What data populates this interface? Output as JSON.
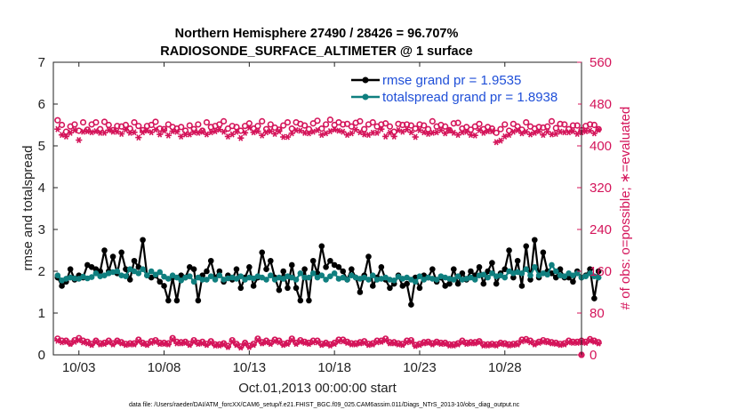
{
  "chart_data": {
    "type": "line",
    "title": "Northern Hemisphere 27490 / 28426 = 96.707%",
    "subtitle": "RADIOSONDE_SURFACE_ALTIMETER @ 1 surface",
    "xlabel": "Oct.01,2013 00:00:00 start",
    "ylabel_left": "rmse and totalspread",
    "ylabel_right": "# of obs: o=possible; ∗=evaluated",
    "footer": "data file: /Users/raeder/DAI/ATM_forcXX/CAM6_setup/f.e21.FHIST_BGC.f09_025.CAM6assim.011/Diags_NTrS_2013-10/obs_diag_output.nc",
    "xlim": [
      1.5,
      32.5
    ],
    "ylim_left": [
      0,
      7
    ],
    "ylim_right": [
      0,
      560
    ],
    "x_ticks": [
      3,
      8,
      13,
      18,
      23,
      28
    ],
    "x_tick_labels": [
      "10/03",
      "10/08",
      "10/13",
      "10/18",
      "10/23",
      "10/28"
    ],
    "y_ticks_left": [
      0,
      1,
      2,
      3,
      4,
      5,
      6,
      7
    ],
    "y_ticks_right": [
      0,
      80,
      160,
      240,
      320,
      400,
      480,
      560
    ],
    "x_step_days": 0.25,
    "grid": false,
    "legend_position": "top-right",
    "colors": {
      "rmse": "#000000",
      "totalspread": "#0f7f7f",
      "obs": "#d4145a"
    },
    "series": [
      {
        "name": "rmse grand pr = 1.9535",
        "axis": "left",
        "marker": "filled-circle",
        "values": [
          1.85,
          1.65,
          1.75,
          2.05,
          1.8,
          1.9,
          1.85,
          2.15,
          2.1,
          2.05,
          2.0,
          2.5,
          2.0,
          2.35,
          1.95,
          2.45,
          2.05,
          1.8,
          2.25,
          2.1,
          2.75,
          1.9,
          1.85,
          1.9,
          1.75,
          1.65,
          1.3,
          1.85,
          1.3,
          1.9,
          1.85,
          2.1,
          2.05,
          1.3,
          1.9,
          2.0,
          2.25,
          1.85,
          2.0,
          1.75,
          1.9,
          1.8,
          2.05,
          1.6,
          1.85,
          2.1,
          1.65,
          1.85,
          2.45,
          2.05,
          2.25,
          1.85,
          1.55,
          2.0,
          1.6,
          2.15,
          1.6,
          1.3,
          2.05,
          1.3,
          2.25,
          1.95,
          2.6,
          2.1,
          2.25,
          2.15,
          2.1,
          2.0,
          1.8,
          2.05,
          1.85,
          1.5,
          1.9,
          2.35,
          1.65,
          1.85,
          2.1,
          1.8,
          1.6,
          1.7,
          1.9,
          1.65,
          1.7,
          1.2,
          1.85,
          1.6,
          1.9,
          1.85,
          2.05,
          1.75,
          1.85,
          1.65,
          1.7,
          2.05,
          1.7,
          1.95,
          1.8,
          2.0,
          1.9,
          2.1,
          1.7,
          2.0,
          2.2,
          1.7,
          1.95,
          2.05,
          2.5,
          1.85,
          2.25,
          1.65,
          2.6,
          1.8,
          2.75,
          1.85,
          2.45,
          2.0,
          1.95,
          1.85,
          2.05,
          1.85,
          1.85,
          1.75,
          2.0,
          1.85,
          1.9,
          2.05,
          1.35,
          2.0
        ]
      },
      {
        "name": "totalspread grand pr = 1.8938",
        "axis": "left",
        "marker": "filled-circle",
        "values": [
          1.9,
          1.78,
          1.82,
          1.85,
          1.83,
          1.82,
          1.87,
          1.83,
          1.86,
          1.95,
          1.88,
          1.9,
          1.95,
          1.98,
          2.0,
          1.9,
          1.88,
          2.05,
          2.0,
          1.95,
          2.05,
          1.9,
          2.0,
          1.92,
          1.98,
          1.87,
          1.82,
          1.9,
          1.85,
          1.78,
          1.85,
          1.88,
          1.75,
          1.85,
          1.8,
          1.8,
          1.88,
          1.8,
          1.9,
          1.8,
          1.83,
          1.85,
          1.82,
          1.88,
          1.8,
          1.85,
          1.83,
          1.88,
          1.85,
          1.8,
          1.9,
          1.8,
          1.85,
          1.82,
          1.88,
          1.85,
          1.8,
          1.95,
          1.85,
          1.85,
          1.95,
          1.85,
          1.9,
          1.8,
          1.88,
          1.95,
          1.82,
          1.85,
          1.8,
          1.9,
          1.85,
          1.82,
          1.85,
          1.8,
          1.9,
          1.8,
          1.82,
          1.85,
          1.8,
          1.78,
          1.87,
          1.82,
          1.85,
          1.8,
          1.75,
          1.88,
          1.8,
          1.85,
          1.82,
          1.8,
          1.88,
          1.85,
          1.82,
          1.8,
          1.88,
          1.8,
          1.82,
          1.85,
          1.8,
          1.9,
          1.92,
          1.85,
          1.95,
          1.88,
          1.9,
          1.85,
          2.0,
          1.95,
          1.98,
          1.95,
          2.05,
          1.9,
          2.1,
          1.9,
          1.95,
          1.92,
          2.15,
          2.0,
          1.9,
          1.88,
          1.95,
          1.9,
          1.95,
          1.85,
          1.88,
          1.95,
          1.88,
          1.85
        ]
      },
      {
        "name": "possible",
        "axis": "right",
        "marker": "open-circle",
        "values": [
          31,
          27,
          27,
          22,
          28,
          32,
          27,
          25,
          21,
          27,
          22,
          23,
          27,
          22,
          27,
          24,
          21,
          22,
          22,
          29,
          23,
          21,
          26,
          28,
          23,
          23,
          22,
          32,
          25,
          24,
          25,
          21,
          28,
          23,
          25,
          21,
          26,
          20,
          20,
          22,
          17,
          28,
          21,
          16,
          23,
          17,
          21,
          31,
          24,
          27,
          23,
          29,
          27,
          21,
          23,
          31,
          23,
          28,
          25,
          23,
          27,
          27,
          21,
          23,
          20,
          23,
          29,
          29,
          25,
          22,
          22,
          24,
          26,
          21,
          22,
          27,
          27,
          31,
          24,
          24,
          22,
          21,
          27,
          28,
          19,
          21,
          24,
          25,
          22,
          25,
          23,
          23,
          20,
          20,
          22,
          27,
          23,
          24,
          24,
          26,
          20,
          20,
          21,
          20,
          23,
          22,
          20,
          21,
          22,
          29,
          30,
          27,
          22,
          25,
          28,
          26,
          24,
          23,
          21,
          22,
          27,
          25,
          25,
          27,
          25,
          30,
          27,
          24
        ]
      },
      {
        "name": "evaluated",
        "axis": "right",
        "marker": "asterisk",
        "values": [
          27,
          24,
          25,
          21,
          25,
          28,
          24,
          22,
          19,
          25,
          20,
          21,
          24,
          20,
          25,
          22,
          19,
          20,
          20,
          26,
          21,
          19,
          23,
          25,
          21,
          21,
          20,
          29,
          22,
          22,
          23,
          19,
          25,
          21,
          22,
          19,
          23,
          18,
          18,
          20,
          15,
          25,
          19,
          14,
          21,
          15,
          19,
          28,
          22,
          24,
          21,
          26,
          24,
          19,
          21,
          28,
          21,
          25,
          23,
          21,
          24,
          24,
          19,
          21,
          18,
          21,
          26,
          26,
          23,
          20,
          20,
          22,
          23,
          19,
          20,
          24,
          25,
          28,
          22,
          22,
          20,
          19,
          24,
          25,
          17,
          19,
          22,
          23,
          20,
          23,
          21,
          21,
          18,
          18,
          20,
          24,
          21,
          22,
          22,
          24,
          18,
          18,
          19,
          18,
          21,
          20,
          18,
          19,
          20,
          26,
          27,
          24,
          20,
          23,
          25,
          24,
          22,
          21,
          19,
          20,
          24,
          23,
          23,
          24,
          23,
          27,
          25,
          22
        ]
      }
    ],
    "upper_possible": [
      449,
      440,
      427,
      437,
      441,
      429,
      445,
      431,
      441,
      445,
      432,
      446,
      440,
      430,
      438,
      437,
      440,
      433,
      445,
      438,
      430,
      438,
      440,
      446,
      433,
      432,
      441,
      436,
      433,
      436,
      429,
      439,
      432,
      441,
      429,
      445,
      436,
      438,
      441,
      447,
      433,
      438,
      436,
      429,
      438,
      443,
      433,
      438,
      447,
      432,
      441,
      435,
      431,
      439,
      445,
      433,
      445,
      442,
      439,
      432,
      443,
      448,
      433,
      441,
      450,
      440,
      445,
      441,
      442,
      437,
      444,
      447,
      432,
      441,
      445,
      437,
      441,
      443,
      437,
      427,
      442,
      440,
      441,
      439,
      433,
      441,
      439,
      432,
      447,
      437,
      440,
      437,
      430,
      443,
      444,
      433,
      436,
      431,
      437,
      442,
      432,
      436,
      433,
      425,
      432,
      441,
      429,
      442,
      437,
      431,
      445,
      437,
      433,
      436,
      435,
      437,
      447,
      434,
      442,
      441,
      432,
      439,
      439,
      430,
      438,
      441,
      440,
      432
    ],
    "upper_evaluated": [
      432,
      421,
      418,
      425,
      430,
      411,
      427,
      428,
      426,
      428,
      425,
      425,
      430,
      427,
      427,
      423,
      431,
      425,
      426,
      416,
      426,
      429,
      426,
      431,
      422,
      429,
      420,
      428,
      427,
      418,
      422,
      422,
      426,
      425,
      427,
      422,
      426,
      428,
      431,
      427,
      418,
      422,
      427,
      415,
      425,
      435,
      426,
      428,
      420,
      426,
      428,
      423,
      428,
      417,
      417,
      424,
      430,
      429,
      425,
      424,
      427,
      430,
      421,
      424,
      428,
      431,
      429,
      427,
      421,
      424,
      431,
      426,
      422,
      421,
      425,
      425,
      432,
      418,
      425,
      418,
      430,
      427,
      431,
      426,
      417,
      430,
      426,
      423,
      425,
      426,
      430,
      424,
      430,
      425,
      421,
      426,
      427,
      421,
      420,
      430,
      425,
      428,
      428,
      407,
      410,
      418,
      421,
      427,
      430,
      424,
      427,
      422,
      425,
      428,
      421,
      427,
      422,
      423,
      427,
      426,
      426,
      428,
      423,
      426,
      428,
      429,
      424,
      431
    ],
    "final_point_right": 0
  }
}
